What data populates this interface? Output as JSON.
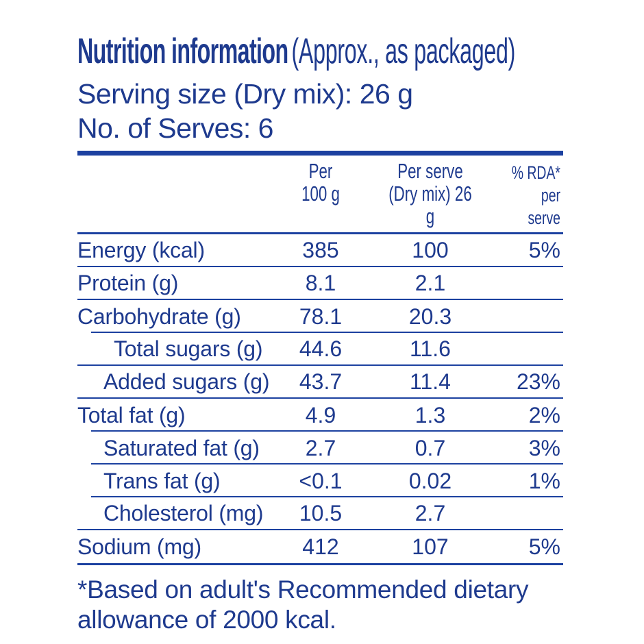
{
  "colors": {
    "ink": "#1e3a8e",
    "rule": "#1c41a0",
    "background": "#ffffff"
  },
  "header": {
    "title_bold": "Nutrition information",
    "title_note": "(Approx., as packaged)",
    "serving_size_line": "Serving size (Dry mix): 26 g",
    "serves_line": "No. of Serves: 6"
  },
  "table": {
    "columns": [
      {
        "line1": "Per",
        "line2": "100 g"
      },
      {
        "line1": "Per serve",
        "line2": "(Dry mix) 26 g"
      },
      {
        "line1": "% RDA*",
        "line2": "per serve"
      }
    ],
    "rows": [
      {
        "label": "Energy (kcal)",
        "per_100g": "385",
        "per_serve": "100",
        "rda_per_serve": "5%",
        "indent": 0,
        "rule_below": "full"
      },
      {
        "label": "Protein (g)",
        "per_100g": "8.1",
        "per_serve": "2.1",
        "rda_per_serve": "",
        "indent": 0,
        "rule_below": "full"
      },
      {
        "label": "Carbohydrate (g)",
        "per_100g": "78.1",
        "per_serve": "20.3",
        "rda_per_serve": "",
        "indent": 0,
        "rule_below": "indent"
      },
      {
        "label": "Total sugars (g)",
        "per_100g": "44.6",
        "per_serve": "11.6",
        "rda_per_serve": "",
        "indent": 2,
        "rule_below": "full"
      },
      {
        "label": "Added sugars (g)",
        "per_100g": "43.7",
        "per_serve": "11.4",
        "rda_per_serve": "23%",
        "indent": 1,
        "rule_below": "full"
      },
      {
        "label": "Total fat (g)",
        "per_100g": "4.9",
        "per_serve": "1.3",
        "rda_per_serve": "2%",
        "indent": 0,
        "rule_below": "indent"
      },
      {
        "label": "Saturated fat (g)",
        "per_100g": "2.7",
        "per_serve": "0.7",
        "rda_per_serve": "3%",
        "indent": 1,
        "rule_below": "indent"
      },
      {
        "label": "Trans fat (g)",
        "per_100g": "<0.1",
        "per_serve": "0.02",
        "rda_per_serve": "1%",
        "indent": 1,
        "rule_below": "indent"
      },
      {
        "label": "Cholesterol (mg)",
        "per_100g": "10.5",
        "per_serve": "2.7",
        "rda_per_serve": "",
        "indent": 1,
        "rule_below": "full"
      },
      {
        "label": "Sodium (mg)",
        "per_100g": "412",
        "per_serve": "107",
        "rda_per_serve": "5%",
        "indent": 0,
        "rule_below": "none"
      }
    ]
  },
  "footnote": {
    "line1": "*Based on adult's Recommended dietary",
    "line2": "allowance of 2000 kcal."
  }
}
